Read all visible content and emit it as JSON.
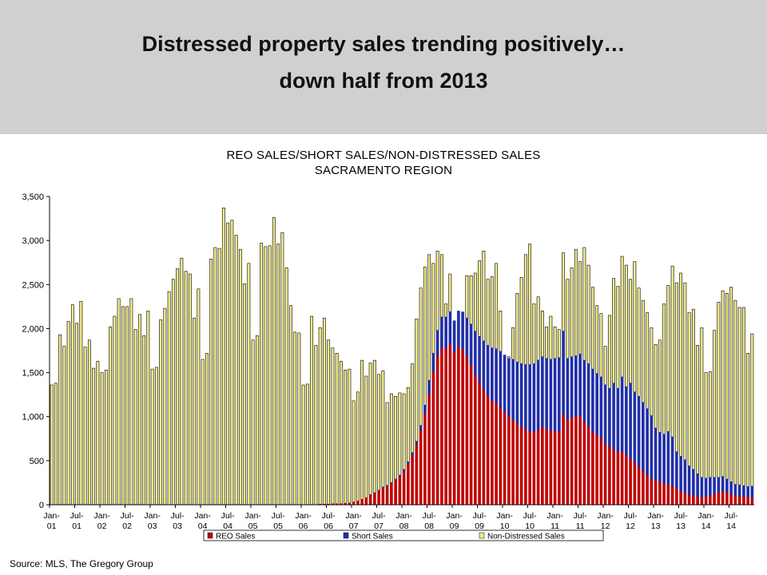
{
  "header": {
    "title_line1": "Distressed property sales trending positively…",
    "title_line2": "down half from 2013"
  },
  "source": "Source: MLS, The Gregory Group",
  "colors": {
    "header_bg": "#d0d0d0",
    "reo": "#c00000",
    "short": "#1f2fa8",
    "non_distressed": "#f0eb88",
    "bar_border": "#000000"
  },
  "chart_data": {
    "type": "bar",
    "stacked": true,
    "title": "REO SALES/SHORT SALES/NON-DISTRESSED SALES",
    "subtitle": "SACRAMENTO REGION",
    "ylim": [
      0,
      3500
    ],
    "yticks": [
      0,
      500,
      1000,
      1500,
      2000,
      2500,
      3000,
      3500
    ],
    "ytick_labels": [
      "0",
      "500",
      "1,000",
      "1,500",
      "2,000",
      "2,500",
      "3,000",
      "3,500"
    ],
    "grid": false,
    "legend_position": "bottom",
    "x_start": "2001-01",
    "x_end": "2014-10",
    "x_tick_labels": [
      {
        "month": "Jan-",
        "year": "01"
      },
      {
        "month": "Jul-",
        "year": "01"
      },
      {
        "month": "Jan-",
        "year": "02"
      },
      {
        "month": "Jul-",
        "year": "02"
      },
      {
        "month": "Jan-",
        "year": "03"
      },
      {
        "month": "Jul-",
        "year": "03"
      },
      {
        "month": "Jan-",
        "year": "04"
      },
      {
        "month": "Jul-",
        "year": "04"
      },
      {
        "month": "Jan-",
        "year": "05"
      },
      {
        "month": "Jul-",
        "year": "05"
      },
      {
        "month": "Jan-",
        "year": "06"
      },
      {
        "month": "Jul-",
        "year": "06"
      },
      {
        "month": "Jan-",
        "year": "07"
      },
      {
        "month": "Jul-",
        "year": "07"
      },
      {
        "month": "Jan-",
        "year": "08"
      },
      {
        "month": "Jul-",
        "year": "08"
      },
      {
        "month": "Jan-",
        "year": "09"
      },
      {
        "month": "Jul-",
        "year": "09"
      },
      {
        "month": "Jan-",
        "year": "10"
      },
      {
        "month": "Jul-",
        "year": "10"
      },
      {
        "month": "Jan-",
        "year": "11"
      },
      {
        "month": "Jul-",
        "year": "11"
      },
      {
        "month": "Jan-",
        "year": "12"
      },
      {
        "month": "Jul-",
        "year": "12"
      },
      {
        "month": "Jan-",
        "year": "13"
      },
      {
        "month": "Jul-",
        "year": "13"
      },
      {
        "month": "Jan-",
        "year": "14"
      },
      {
        "month": "Jul-",
        "year": "14"
      }
    ],
    "totals": [
      1360,
      1380,
      1930,
      1800,
      2080,
      2270,
      2060,
      2310,
      1790,
      1870,
      1550,
      1630,
      1500,
      1530,
      2020,
      2140,
      2340,
      2250,
      2250,
      2340,
      1990,
      2160,
      1920,
      2200,
      1540,
      1560,
      2100,
      2230,
      2420,
      2560,
      2680,
      2800,
      2650,
      2620,
      2120,
      2450,
      1650,
      1720,
      2790,
      2920,
      2910,
      3370,
      3200,
      3230,
      3060,
      2900,
      2510,
      2740,
      1870,
      1920,
      2970,
      2930,
      2940,
      3260,
      2960,
      3090,
      2690,
      2260,
      1960,
      1950,
      1360,
      1370,
      2140,
      1810,
      2010,
      2120,
      1870,
      1780,
      1720,
      1630,
      1530,
      1540,
      1180,
      1280,
      1640,
      1460,
      1610,
      1640,
      1480,
      1520,
      1160,
      1260,
      1230,
      1270,
      1260,
      1330,
      1600,
      2110,
      2460,
      2700,
      2840,
      2740,
      2880,
      2840,
      2280,
      2620,
      1900,
      2180,
      2160,
      2600,
      2600,
      2630,
      2770,
      2880,
      2560,
      2590,
      2740,
      2200,
      1650,
      1680,
      2010,
      2400,
      2580,
      2840,
      2960,
      2280,
      2360,
      2200,
      2020,
      2140,
      2020,
      1990,
      2860,
      2560,
      2690,
      2900,
      2760,
      2920,
      2720,
      2470,
      2260,
      2170,
      1800,
      2150,
      2570,
      2480,
      2820,
      2720,
      2560,
      2760,
      2460,
      2320,
      2180,
      2010,
      1820,
      1870,
      2280,
      2490,
      2710,
      2520,
      2630,
      2520,
      2180,
      2220,
      1810,
      2010,
      1500,
      1510,
      1980,
      2300,
      2430,
      2400,
      2470,
      2320,
      2240,
      2240,
      1720,
      1940
    ],
    "reo": [
      0,
      0,
      0,
      0,
      0,
      0,
      0,
      0,
      0,
      0,
      0,
      0,
      0,
      0,
      0,
      0,
      0,
      0,
      0,
      0,
      0,
      0,
      0,
      0,
      0,
      0,
      0,
      0,
      0,
      0,
      0,
      0,
      0,
      0,
      0,
      0,
      0,
      0,
      0,
      0,
      0,
      0,
      0,
      0,
      0,
      0,
      0,
      0,
      0,
      0,
      0,
      0,
      0,
      0,
      0,
      0,
      0,
      0,
      0,
      0,
      0,
      0,
      0,
      0,
      5,
      5,
      5,
      10,
      10,
      10,
      15,
      20,
      30,
      40,
      60,
      80,
      110,
      130,
      160,
      190,
      210,
      240,
      280,
      320,
      380,
      460,
      560,
      680,
      840,
      1030,
      1260,
      1510,
      1690,
      1780,
      1770,
      1820,
      1730,
      1800,
      1760,
      1680,
      1580,
      1470,
      1390,
      1310,
      1230,
      1180,
      1150,
      1100,
      1050,
      1000,
      960,
      920,
      880,
      850,
      830,
      820,
      850,
      880,
      860,
      840,
      830,
      830,
      1020,
      960,
      990,
      1000,
      1000,
      940,
      880,
      820,
      790,
      750,
      680,
      660,
      620,
      600,
      600,
      560,
      520,
      480,
      430,
      380,
      330,
      290,
      270,
      260,
      240,
      230,
      210,
      180,
      150,
      130,
      110,
      100,
      90,
      80,
      90,
      100,
      120,
      140,
      150,
      140,
      120,
      100,
      95,
      95,
      85,
      80
    ],
    "short": [
      0,
      0,
      0,
      0,
      0,
      0,
      0,
      0,
      0,
      0,
      0,
      0,
      0,
      0,
      0,
      0,
      0,
      0,
      0,
      0,
      0,
      0,
      0,
      0,
      0,
      0,
      0,
      0,
      0,
      0,
      0,
      0,
      0,
      0,
      0,
      0,
      0,
      0,
      0,
      0,
      0,
      0,
      0,
      0,
      0,
      0,
      0,
      0,
      0,
      0,
      0,
      0,
      0,
      0,
      0,
      0,
      0,
      0,
      0,
      0,
      0,
      0,
      0,
      0,
      0,
      0,
      0,
      0,
      0,
      0,
      0,
      0,
      0,
      0,
      0,
      0,
      5,
      5,
      5,
      10,
      10,
      10,
      10,
      15,
      20,
      25,
      30,
      40,
      60,
      100,
      150,
      210,
      290,
      350,
      360,
      370,
      360,
      400,
      430,
      440,
      470,
      500,
      520,
      550,
      580,
      600,
      620,
      640,
      650,
      660,
      690,
      700,
      720,
      740,
      760,
      780,
      790,
      800,
      800,
      810,
      830,
      840,
      950,
      700,
      690,
      690,
      710,
      700,
      720,
      720,
      700,
      700,
      680,
      660,
      760,
      720,
      850,
      780,
      860,
      800,
      800,
      780,
      760,
      720,
      600,
      560,
      560,
      600,
      560,
      420,
      400,
      380,
      330,
      300,
      260,
      230,
      210,
      210,
      190,
      170,
      170,
      150,
      140,
      130,
      130,
      120,
      120,
      130
    ]
  },
  "legend": {
    "reo": "REO Sales",
    "short": "Short Sales",
    "non_distressed": "Non-Distressed Sales"
  }
}
